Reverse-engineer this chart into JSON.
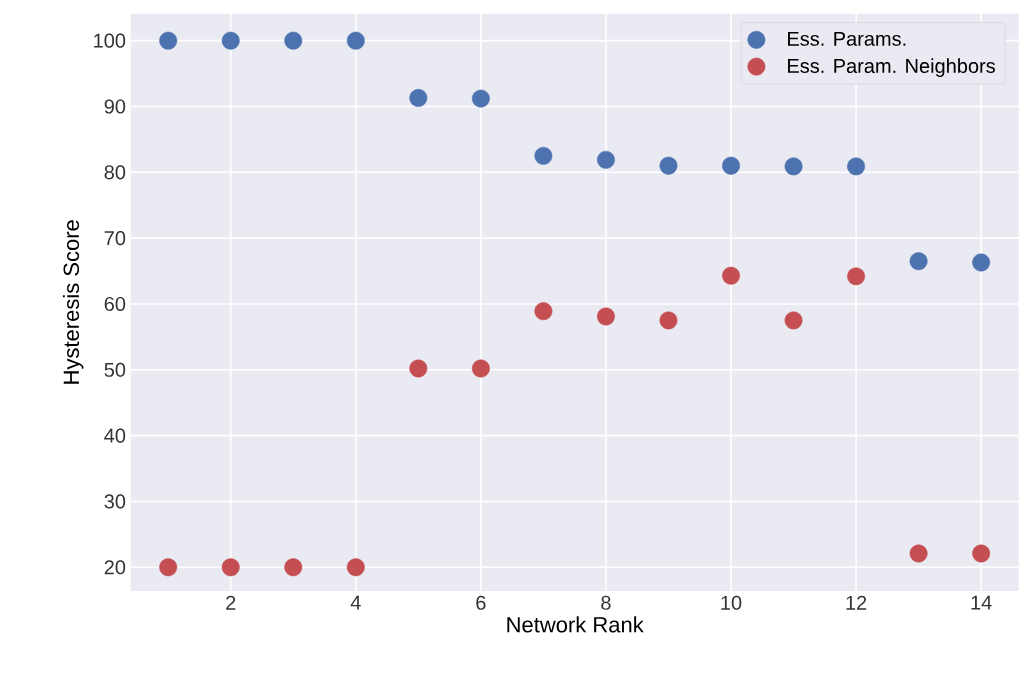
{
  "chart_data": {
    "type": "scatter",
    "xlabel": "Network Rank",
    "ylabel": "Hysteresis Score",
    "x": [
      1,
      2,
      3,
      4,
      5,
      6,
      7,
      8,
      9,
      10,
      11,
      12,
      13,
      14
    ],
    "series": [
      {
        "name": "Ess. Params.",
        "color": "#4c72b0",
        "values": [
          100,
          100,
          100,
          100,
          91.3,
          91.2,
          82.5,
          81.9,
          81.0,
          81.0,
          80.9,
          80.9,
          66.5,
          66.3
        ]
      },
      {
        "name": "Ess. Param. Neighbors",
        "color": "#c44e52",
        "values": [
          20,
          20,
          20,
          20,
          50.2,
          50.2,
          58.9,
          58.1,
          57.5,
          64.3,
          57.5,
          64.2,
          22.1,
          22.1
        ]
      }
    ],
    "xlim": [
      0.4,
      14.6
    ],
    "ylim": [
      16.4,
      104.1
    ],
    "xticks": [
      2,
      4,
      6,
      8,
      10,
      12,
      14
    ],
    "yticks": [
      20,
      30,
      40,
      50,
      60,
      70,
      80,
      90,
      100
    ],
    "grid": true,
    "legend": "top right",
    "marker": "circle"
  }
}
